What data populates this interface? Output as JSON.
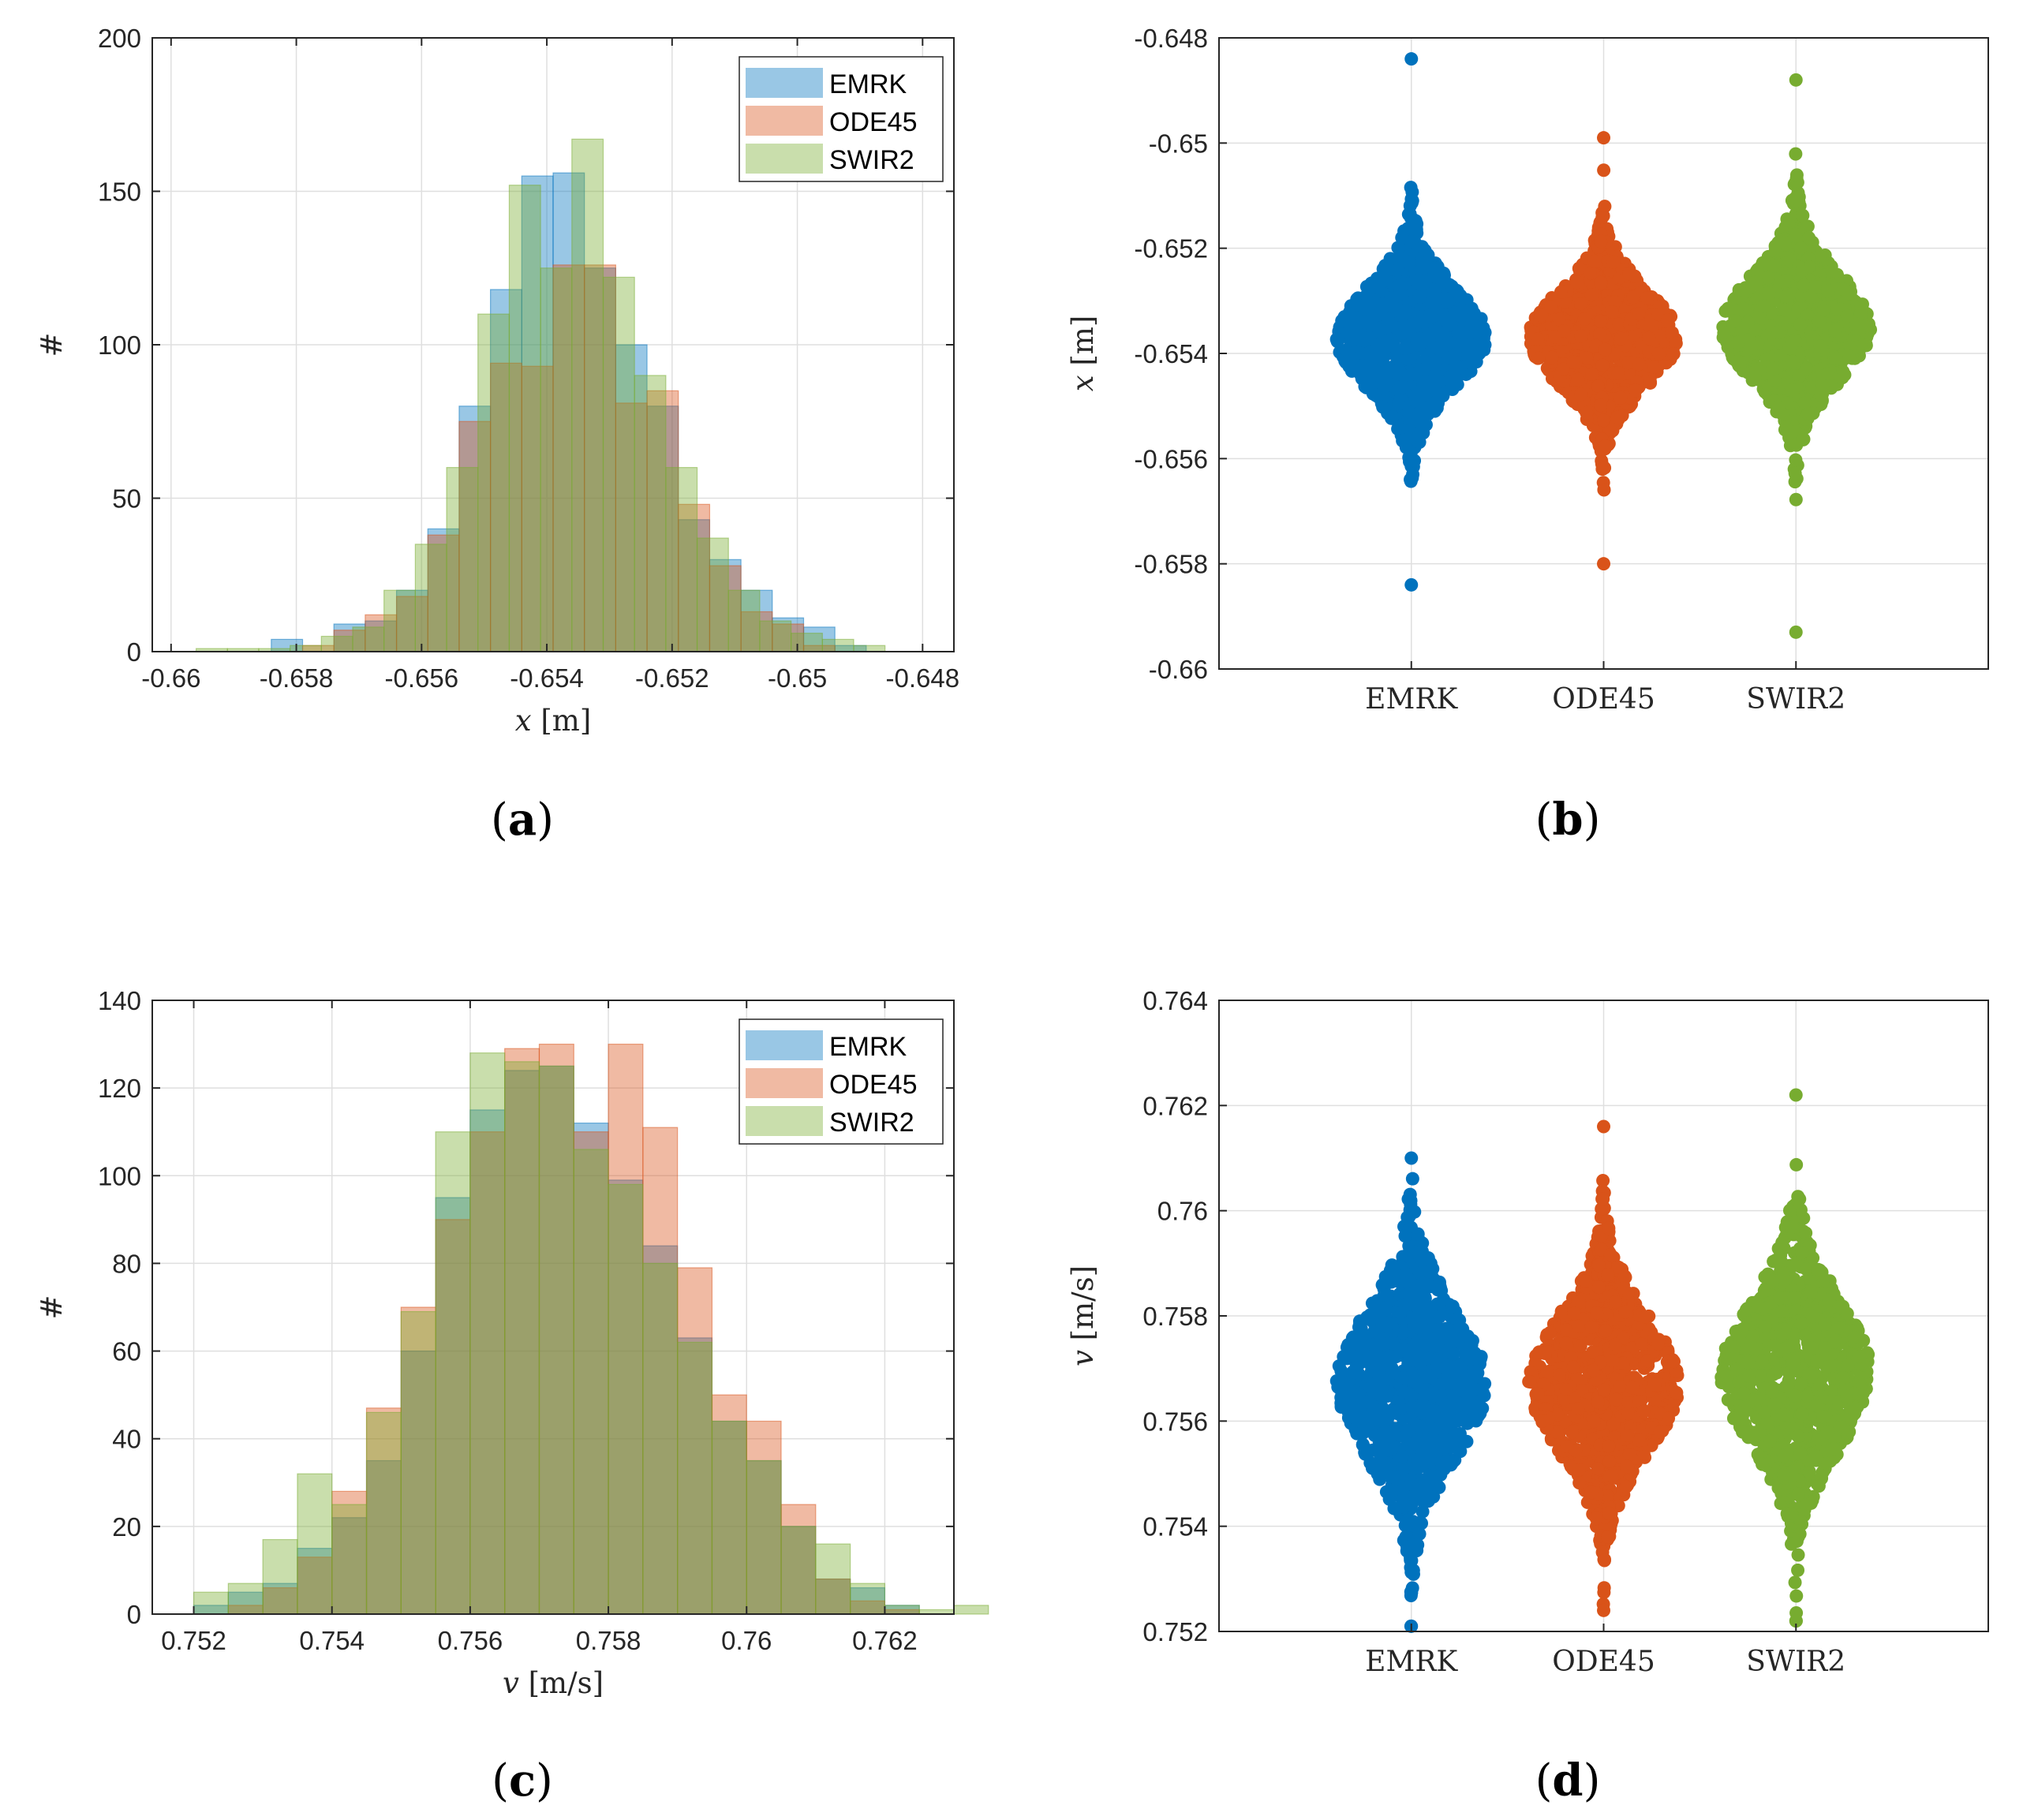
{
  "colors": {
    "emrk": "#0072bd",
    "ode45": "#d95319",
    "swir2": "#77ac30",
    "grid": "#dfdfdf",
    "axis": "#262626"
  },
  "legend_labels": [
    "EMRK",
    "ODE45",
    "SWIR2"
  ],
  "panels": {
    "a": {
      "paren_open": "(",
      "letter": "a",
      "paren_close": ")"
    },
    "b": {
      "paren_open": "(",
      "letter": "b",
      "paren_close": ")"
    },
    "c": {
      "paren_open": "(",
      "letter": "c",
      "paren_close": ")"
    },
    "d": {
      "paren_open": "(",
      "letter": "d",
      "paren_close": ")"
    }
  },
  "chart_data": [
    {
      "id": "a",
      "type": "bar",
      "subtype": "overlaid-histogram",
      "title": "",
      "xlabel_var": "x",
      "xlabel_unit": "[m]",
      "ylabel": "#",
      "xlim": [
        -0.6603,
        -0.6475
      ],
      "ylim": [
        0,
        200
      ],
      "xticks": [
        -0.66,
        -0.658,
        -0.656,
        -0.654,
        -0.652,
        -0.65,
        -0.648
      ],
      "xtick_labels": [
        "-0.66",
        "-0.658",
        "-0.656",
        "-0.654",
        "-0.652",
        "-0.65",
        "-0.648"
      ],
      "yticks": [
        0,
        50,
        100,
        150,
        200
      ],
      "ytick_labels": [
        "0",
        "50",
        "100",
        "150",
        "200"
      ],
      "grid": true,
      "legend": "top-right",
      "series": [
        {
          "name": "EMRK",
          "bin_start": -0.6584,
          "bin_width": 0.0005,
          "counts": [
            4,
            0,
            9,
            10,
            20,
            40,
            80,
            118,
            155,
            156,
            125,
            100,
            80,
            43,
            30,
            20,
            11,
            8,
            2
          ]
        },
        {
          "name": "ODE45",
          "bin_start": -0.6579,
          "bin_width": 0.0005,
          "counts": [
            2,
            7,
            12,
            18,
            38,
            75,
            94,
            93,
            126,
            126,
            81,
            85,
            48,
            28,
            13,
            9,
            2
          ]
        },
        {
          "name": "SWIR2",
          "bin_start": -0.6596,
          "bin_width": 0.0005,
          "counts": [
            1,
            1,
            1,
            2,
            5,
            8,
            20,
            35,
            60,
            110,
            152,
            125,
            167,
            122,
            90,
            60,
            37,
            20,
            10,
            6,
            4,
            2
          ]
        }
      ]
    },
    {
      "id": "b",
      "type": "scatter",
      "subtype": "swarm",
      "title": "",
      "ylabel_var": "x",
      "ylabel_unit": "[m]",
      "categories": [
        "EMRK",
        "ODE45",
        "SWIR2"
      ],
      "ylim": [
        -0.66,
        -0.648
      ],
      "yticks": [
        -0.66,
        -0.658,
        -0.656,
        -0.654,
        -0.652,
        -0.65,
        -0.648
      ],
      "ytick_labels": [
        "-0.66",
        "-0.658",
        "-0.656",
        "-0.654",
        "-0.652",
        "-0.65",
        "-0.648"
      ],
      "grid": true,
      "series": [
        {
          "name": "EMRK",
          "center": -0.6537,
          "sd": 0.00095,
          "n": 1000,
          "min": -0.6584,
          "max": -0.6484
        },
        {
          "name": "ODE45",
          "center": -0.6537,
          "sd": 0.0009,
          "n": 1000,
          "min": -0.658,
          "max": -0.6499
        },
        {
          "name": "SWIR2",
          "center": -0.6535,
          "sd": 0.001,
          "n": 1000,
          "min": -0.6593,
          "max": -0.6488
        }
      ]
    },
    {
      "id": "c",
      "type": "bar",
      "subtype": "overlaid-histogram",
      "title": "",
      "xlabel_var": "v",
      "xlabel_unit": "[m/s]",
      "ylabel": "#",
      "xlim": [
        0.7514,
        0.763
      ],
      "ylim": [
        0,
        140
      ],
      "xticks": [
        0.752,
        0.754,
        0.756,
        0.758,
        0.76,
        0.762
      ],
      "xtick_labels": [
        "0.752",
        "0.754",
        "0.756",
        "0.758",
        "0.76",
        "0.762"
      ],
      "yticks": [
        0,
        20,
        40,
        60,
        80,
        100,
        120,
        140
      ],
      "ytick_labels": [
        "0",
        "20",
        "40",
        "60",
        "80",
        "100",
        "120",
        "140"
      ],
      "grid": true,
      "legend": "top-right",
      "series": [
        {
          "name": "EMRK",
          "bin_start": 0.752,
          "bin_width": 0.0005,
          "counts": [
            2,
            5,
            7,
            15,
            22,
            35,
            60,
            95,
            115,
            124,
            125,
            112,
            99,
            84,
            63,
            44,
            35,
            20,
            8,
            6,
            2
          ]
        },
        {
          "name": "ODE45",
          "bin_start": 0.7525,
          "bin_width": 0.0005,
          "counts": [
            2,
            6,
            13,
            28,
            47,
            70,
            90,
            110,
            129,
            130,
            110,
            130,
            111,
            79,
            50,
            44,
            25,
            8,
            3,
            1
          ]
        },
        {
          "name": "SWIR2",
          "bin_start": 0.752,
          "bin_width": 0.0005,
          "counts": [
            5,
            7,
            17,
            32,
            25,
            46,
            69,
            110,
            128,
            126,
            125,
            106,
            98,
            80,
            62,
            44,
            35,
            20,
            16,
            7,
            2,
            1,
            2
          ]
        }
      ]
    },
    {
      "id": "d",
      "type": "scatter",
      "subtype": "swarm",
      "title": "",
      "ylabel_var": "v",
      "ylabel_unit": "[m/s]",
      "categories": [
        "EMRK",
        "ODE45",
        "SWIR2"
      ],
      "ylim": [
        0.752,
        0.764
      ],
      "yticks": [
        0.752,
        0.754,
        0.756,
        0.758,
        0.76,
        0.762,
        0.764
      ],
      "ytick_labels": [
        "0.752",
        "0.754",
        "0.756",
        "0.758",
        "0.76",
        "0.762",
        "0.764"
      ],
      "grid": true,
      "series": [
        {
          "name": "EMRK",
          "center": 0.7567,
          "sd": 0.0014,
          "n": 1000,
          "min": 0.7521,
          "max": 0.761
        },
        {
          "name": "ODE45",
          "center": 0.7567,
          "sd": 0.0013,
          "n": 1000,
          "min": 0.7524,
          "max": 0.7616
        },
        {
          "name": "SWIR2",
          "center": 0.7569,
          "sd": 0.0014,
          "n": 1000,
          "min": 0.7522,
          "max": 0.7622
        }
      ]
    }
  ]
}
